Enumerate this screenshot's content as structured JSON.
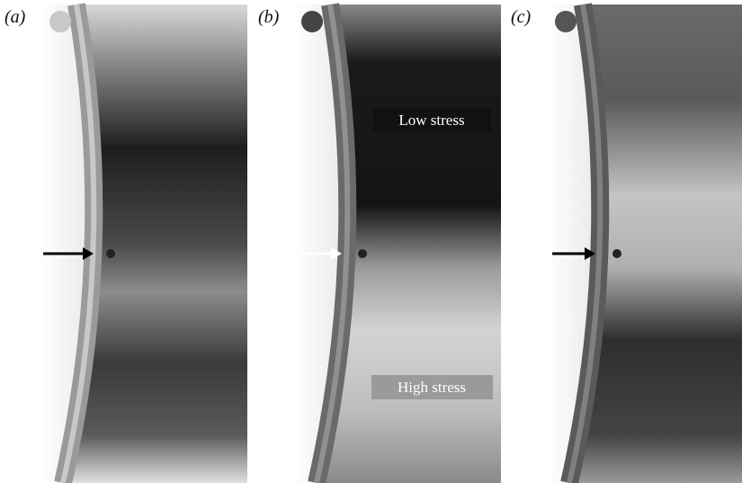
{
  "panels": [
    {
      "label": "(a)"
    },
    {
      "label": "(b)",
      "annotations": [
        "Low stress",
        "High stress"
      ]
    },
    {
      "label": "(c)"
    }
  ]
}
